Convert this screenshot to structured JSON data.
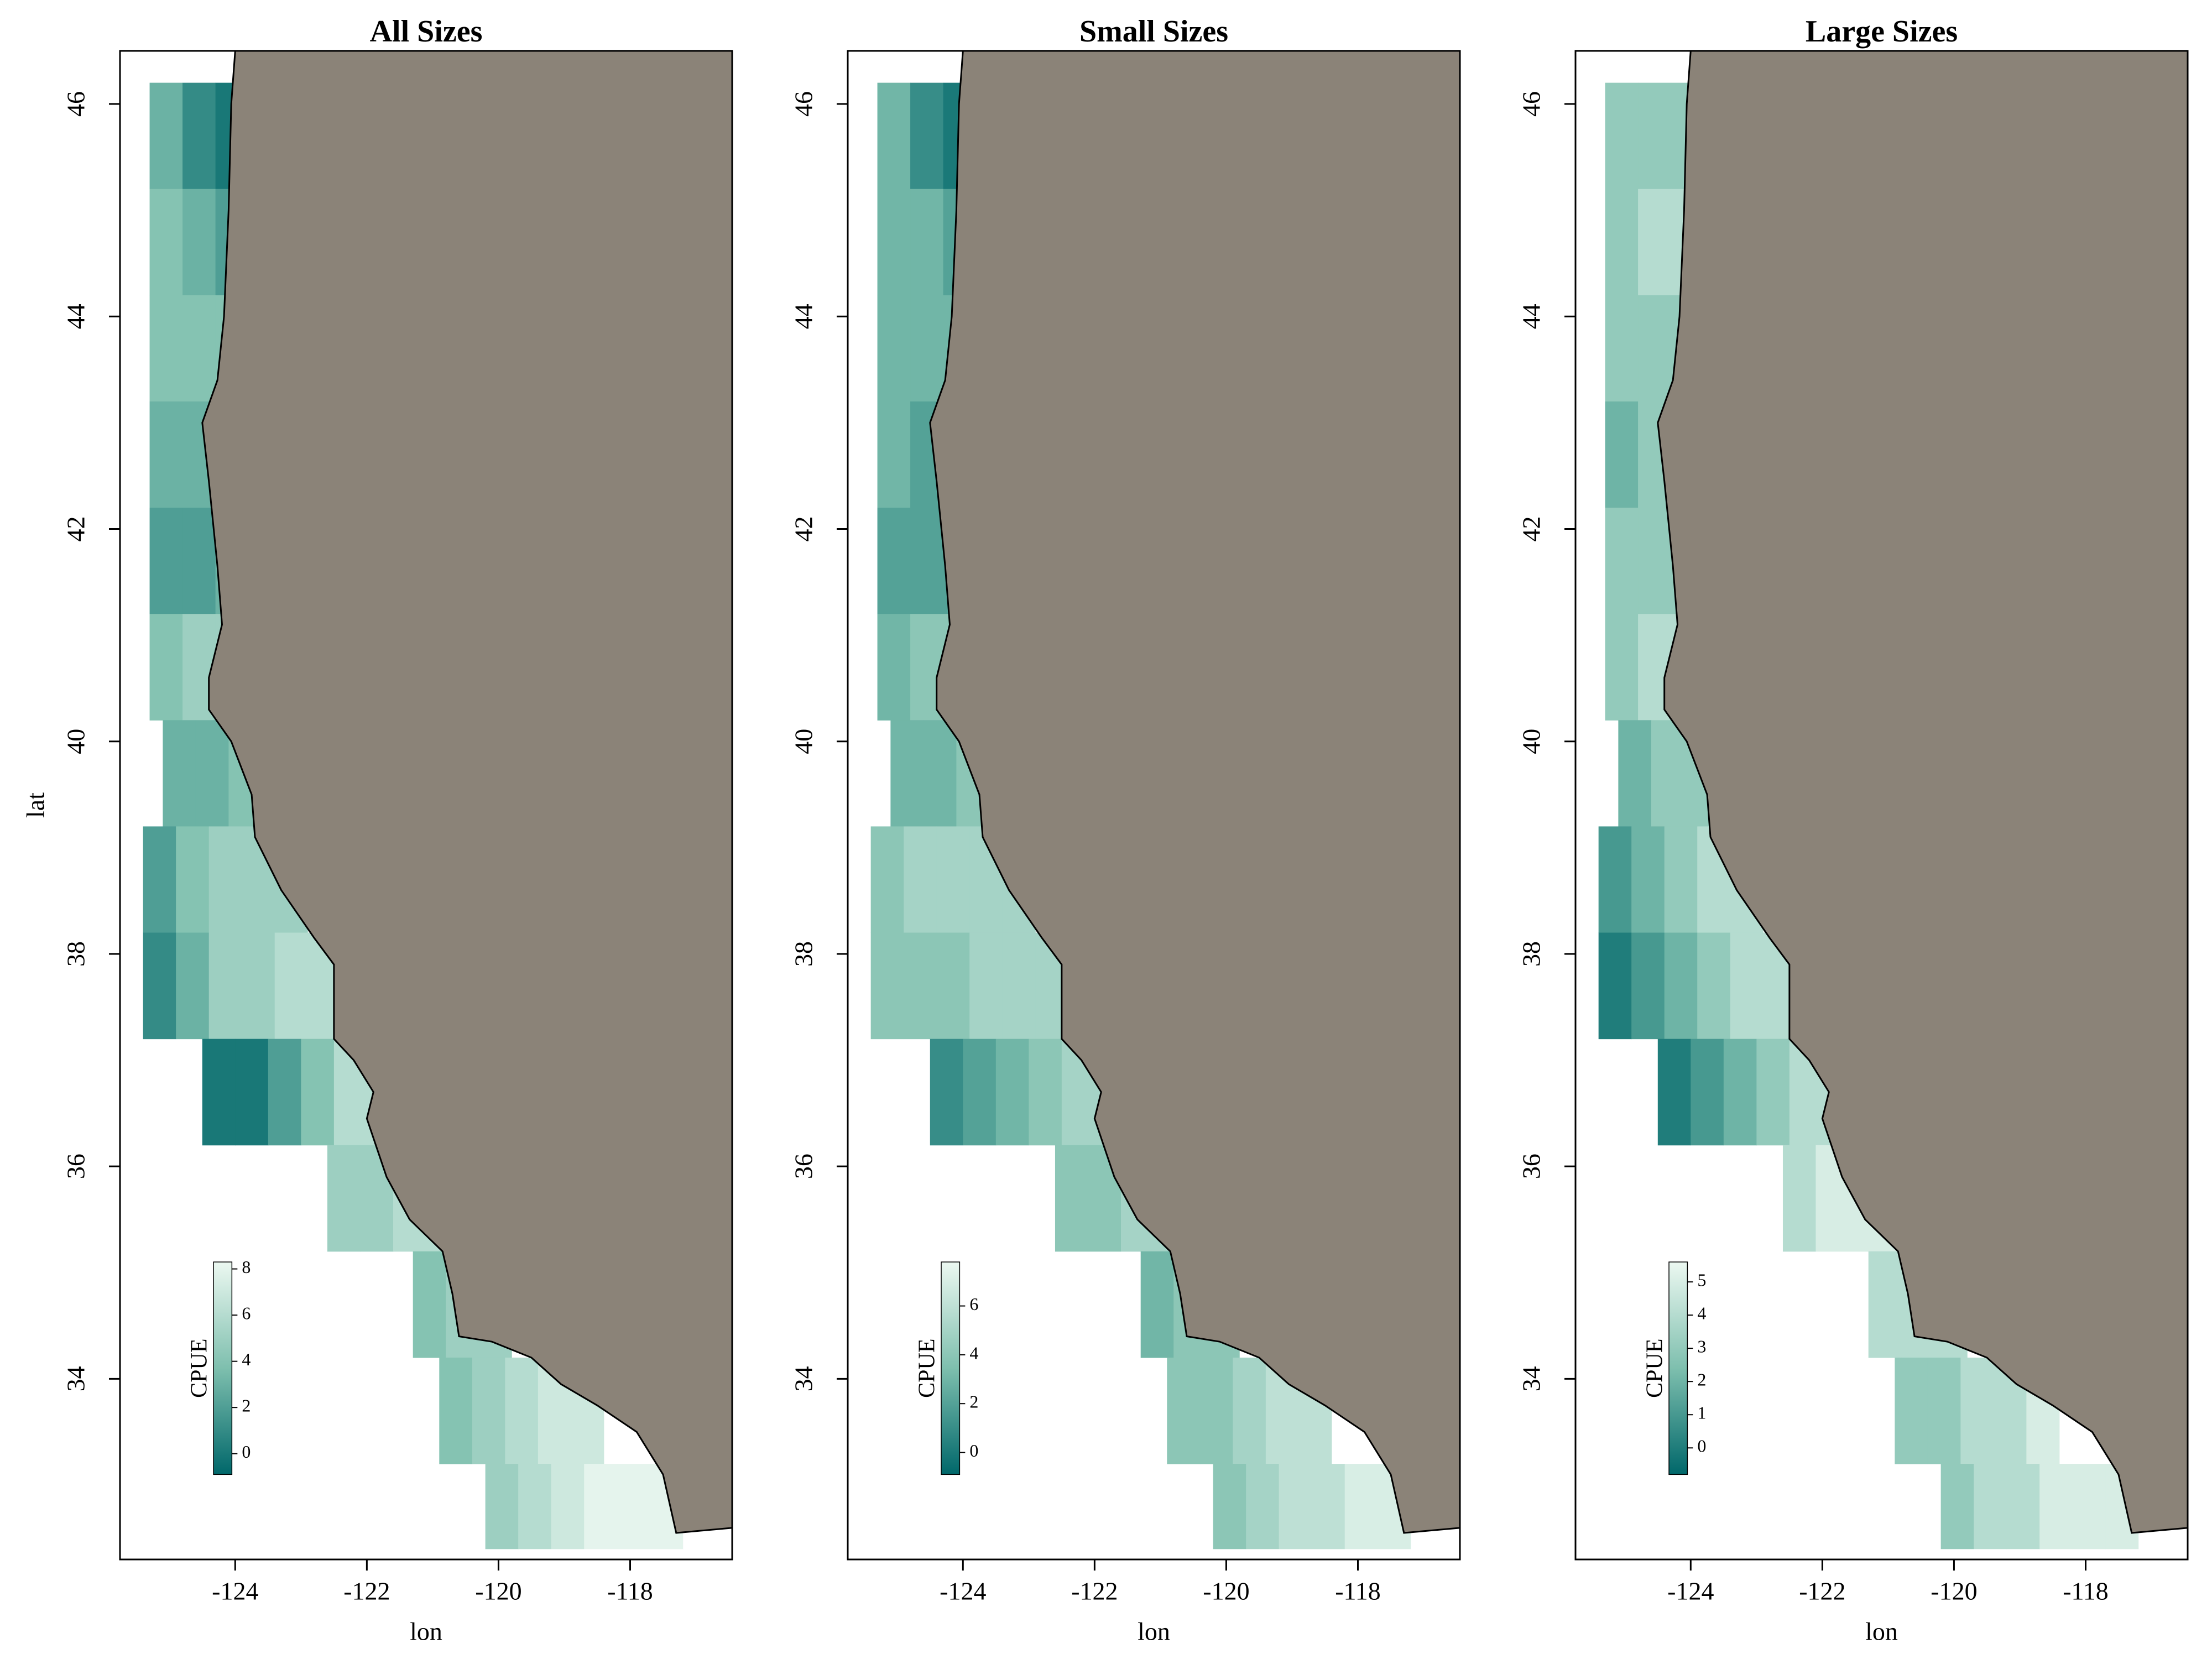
{
  "chart_data": [
    {
      "type": "heatmap",
      "title": "All Sizes",
      "xlabel": "lon",
      "ylabel": "lat",
      "colorbar_label": "CPUE",
      "xlim": [
        -125.75,
        -116.45
      ],
      "ylim": [
        32.3,
        46.5
      ],
      "xticks": [
        -124,
        -122,
        -120,
        -118
      ],
      "yticks": [
        34,
        36,
        38,
        40,
        42,
        44,
        46
      ],
      "clim": [
        -0.9,
        8.3
      ],
      "cticks": [
        0,
        2,
        4,
        6,
        8
      ],
      "colormap": [
        "#00676a",
        "#7ebfae",
        "#ecf8f1"
      ],
      "land_color": "#8b8378",
      "lat": [
        45.2,
        44.2,
        43.2,
        42.2,
        41.2,
        40.2,
        39.2,
        38.2,
        37.2,
        36.2,
        35.2,
        34.2,
        33.2,
        32.4
      ],
      "lon_start": [
        -125.3,
        -125.3,
        -125.3,
        -125.3,
        -125.3,
        -125.3,
        -125.1,
        -125.4,
        -125.4,
        -124.5,
        -122.6,
        -121.3,
        -120.9,
        -120.2
      ],
      "values": [
        [
          3,
          1,
          0
        ],
        [
          4,
          3,
          2
        ],
        [
          4,
          4,
          4
        ],
        [
          3,
          3,
          3
        ],
        [
          2,
          2,
          3
        ],
        [
          4,
          5,
          5
        ],
        [
          3,
          3,
          4,
          5
        ],
        [
          2,
          4,
          5,
          5,
          5
        ],
        [
          1,
          3,
          5,
          5,
          6,
          6
        ],
        [
          0,
          0,
          2,
          4,
          6,
          6
        ],
        [
          5,
          5,
          6,
          6
        ],
        [
          4,
          5,
          5
        ],
        [
          4,
          5,
          6,
          7,
          7
        ],
        [
          5,
          6,
          7,
          8,
          8,
          8
        ]
      ]
    },
    {
      "type": "heatmap",
      "title": "Small Sizes",
      "xlabel": "lon",
      "colorbar_label": "CPUE",
      "xlim": [
        -125.75,
        -116.45
      ],
      "ylim": [
        32.3,
        46.5
      ],
      "xticks": [
        -124,
        -122,
        -120,
        -118
      ],
      "yticks": [
        34,
        36,
        38,
        40,
        42,
        44,
        46
      ],
      "clim": [
        -0.9,
        7.8
      ],
      "cticks": [
        0,
        2,
        4,
        6
      ],
      "colormap": [
        "#00676a",
        "#7ebfae",
        "#ecf8f1"
      ],
      "land_color": "#8b8378",
      "lat": [
        45.2,
        44.2,
        43.2,
        42.2,
        41.2,
        40.2,
        39.2,
        38.2,
        37.2,
        36.2,
        35.2,
        34.2,
        33.2,
        32.4
      ],
      "lon_start": [
        -125.3,
        -125.3,
        -125.3,
        -125.3,
        -125.3,
        -125.3,
        -125.1,
        -125.4,
        -125.4,
        -124.5,
        -122.6,
        -121.3,
        -120.9,
        -120.2
      ],
      "values": [
        [
          3,
          1,
          0
        ],
        [
          3,
          3,
          2
        ],
        [
          3,
          3,
          3
        ],
        [
          3,
          2,
          2
        ],
        [
          2,
          2,
          2
        ],
        [
          3,
          4,
          4
        ],
        [
          3,
          3,
          4,
          4
        ],
        [
          4,
          5,
          5,
          5,
          5
        ],
        [
          4,
          4,
          4,
          5,
          5,
          5
        ],
        [
          1,
          2,
          3,
          4,
          5,
          5
        ],
        [
          4,
          4,
          5,
          5
        ],
        [
          3,
          4,
          4
        ],
        [
          4,
          4,
          5,
          6,
          6
        ],
        [
          4,
          5,
          6,
          6,
          7,
          7
        ]
      ]
    },
    {
      "type": "heatmap",
      "title": "Large Sizes",
      "xlabel": "lon",
      "colorbar_label": "CPUE",
      "xlim": [
        -125.75,
        -116.45
      ],
      "ylim": [
        32.3,
        46.5
      ],
      "xticks": [
        -124,
        -122,
        -120,
        -118
      ],
      "yticks": [
        34,
        36,
        38,
        40,
        42,
        44,
        46
      ],
      "clim": [
        -0.8,
        5.6
      ],
      "cticks": [
        0,
        1,
        2,
        3,
        4,
        5
      ],
      "colormap": [
        "#00676a",
        "#7ebfae",
        "#ecf8f1"
      ],
      "land_color": "#8b8378",
      "lat": [
        45.2,
        44.2,
        43.2,
        42.2,
        41.2,
        40.2,
        39.2,
        38.2,
        37.2,
        36.2,
        35.2,
        34.2,
        33.2,
        32.4
      ],
      "lon_start": [
        -125.3,
        -125.3,
        -125.3,
        -125.3,
        -125.3,
        -125.3,
        -125.1,
        -125.4,
        -125.4,
        -124.5,
        -122.6,
        -121.3,
        -120.9,
        -120.2
      ],
      "values": [
        [
          3,
          3,
          3
        ],
        [
          3,
          4,
          4
        ],
        [
          3,
          3,
          3
        ],
        [
          2,
          3,
          3
        ],
        [
          3,
          3,
          3
        ],
        [
          3,
          4,
          4
        ],
        [
          2,
          3,
          3,
          4
        ],
        [
          1,
          2,
          3,
          4,
          4
        ],
        [
          0,
          1,
          2,
          3,
          4,
          4
        ],
        [
          0,
          1,
          2,
          3,
          4,
          4
        ],
        [
          4,
          5,
          5,
          5
        ],
        [
          4,
          4,
          4
        ],
        [
          3,
          3,
          4,
          4,
          5
        ],
        [
          3,
          4,
          4,
          5,
          5,
          5
        ]
      ]
    }
  ]
}
